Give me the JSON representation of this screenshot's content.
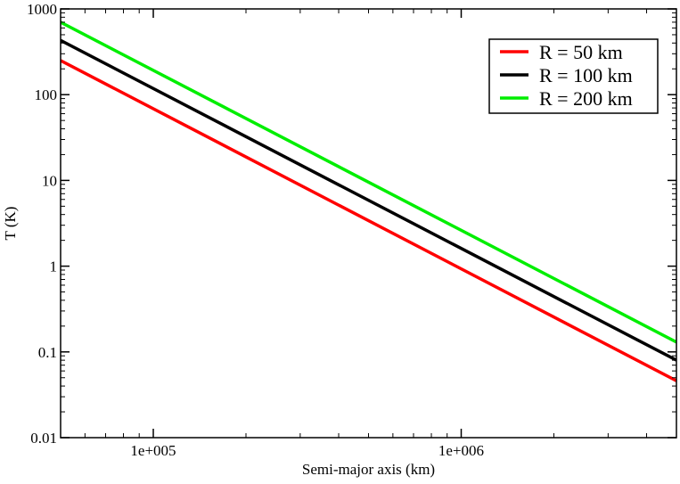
{
  "chart_data": {
    "type": "line",
    "title": "",
    "xlabel": "Semi-major axis (km)",
    "ylabel": "T (K)",
    "x_scale": "log",
    "y_scale": "log",
    "xlim": [
      50000,
      5000000
    ],
    "ylim": [
      0.01,
      1000
    ],
    "grid": false,
    "legend_position": "top-right",
    "x_ticks": [
      {
        "value": 100000,
        "label": "1e+005"
      },
      {
        "value": 1000000,
        "label": "1e+006"
      }
    ],
    "y_ticks": [
      {
        "value": 0.01,
        "label": "0.01"
      },
      {
        "value": 0.1,
        "label": "0.1"
      },
      {
        "value": 1,
        "label": "1"
      },
      {
        "value": 10,
        "label": "10"
      },
      {
        "value": 100,
        "label": "100"
      },
      {
        "value": 1000,
        "label": "1000"
      }
    ],
    "series": [
      {
        "name": "R = 50 km",
        "color": "#ff0000",
        "x": [
          50000,
          5000000
        ],
        "y": [
          250,
          0.046
        ]
      },
      {
        "name": "R = 100 km",
        "color": "#000000",
        "x": [
          50000,
          5000000
        ],
        "y": [
          430,
          0.08
        ]
      },
      {
        "name": "R = 200 km",
        "color": "#00ee00",
        "x": [
          50000,
          5000000
        ],
        "y": [
          700,
          0.13
        ]
      }
    ]
  }
}
